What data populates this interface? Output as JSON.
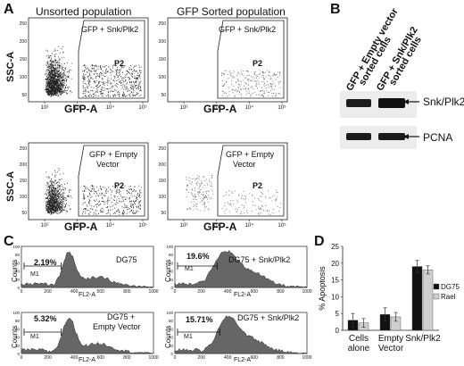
{
  "panels": {
    "A": {
      "letter": "A",
      "col_titles": [
        "Unsorted population",
        "GFP Sorted population"
      ],
      "y_axis": "SSC-A",
      "x_axis": "GFP-A",
      "gate_labels_top": "GFP + Snk/Plk2",
      "gate_labels_bottom_1": "GFP + Empty",
      "gate_labels_bottom_2": "Vector",
      "gate_name": "P2",
      "x_ticks": [
        "10²",
        "10³",
        "10⁴",
        "10⁵"
      ],
      "y_ticks": [
        "50",
        "100",
        "150",
        "200",
        "250"
      ]
    },
    "B": {
      "letter": "B",
      "lane_1": [
        "GFP + Empty vector",
        "sorted cells"
      ],
      "lane_2": [
        "GFP + Snk/Plk2",
        "sorted cells"
      ],
      "band_1": "Snk/Plk2",
      "band_2": "PCNA"
    },
    "C": {
      "letter": "C",
      "histograms": [
        {
          "label": "DG75",
          "pct": "2.19%",
          "gate": "M1"
        },
        {
          "label": "DG75 + Snk/Plk2",
          "pct": "19.6%",
          "gate": "M1"
        },
        {
          "label": "DG75 +",
          "label2": "Empty Vector",
          "pct": "5.32%",
          "gate": "M1"
        },
        {
          "label": "DG75 + Snk/Plk2",
          "pct": "15.71%",
          "gate": "M1"
        }
      ],
      "y_axis": "Counts",
      "x_axis": "FL2-A",
      "y_ticks": [
        "0",
        "20",
        "40",
        "60",
        "80",
        "100"
      ],
      "x_ticks": [
        "0",
        "200",
        "400",
        "600",
        "800",
        "1000"
      ]
    },
    "D": {
      "letter": "D"
    }
  },
  "chart_data": {
    "type": "bar",
    "ylabel": "% Apoptosis",
    "ylim": [
      0,
      25
    ],
    "y_ticks": [
      "0",
      "5",
      "10",
      "15",
      "20",
      "25"
    ],
    "categories": [
      "Cells alone",
      "Empty Vector",
      "Snk/Plk2"
    ],
    "category_lines": [
      [
        "Cells",
        "alone"
      ],
      [
        "Empty",
        "Vector"
      ],
      [
        "Snk/Plk2"
      ]
    ],
    "series": [
      {
        "name": "DG75",
        "values": [
          3.0,
          4.7,
          19.0
        ],
        "errors": [
          2.0,
          2.0,
          1.8
        ],
        "color": "#111111"
      },
      {
        "name": "Rael",
        "values": [
          2.2,
          4.0,
          18.0
        ],
        "errors": [
          1.3,
          1.3,
          1.2
        ],
        "color": "#cfcfcf"
      }
    ],
    "legend": "right"
  }
}
